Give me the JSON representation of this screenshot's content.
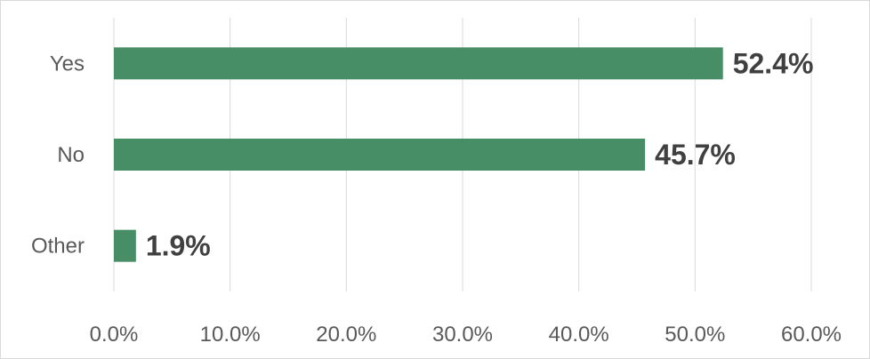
{
  "chart_data": {
    "type": "bar",
    "orientation": "horizontal",
    "categories": [
      "Yes",
      "No",
      "Other"
    ],
    "values": [
      52.4,
      45.7,
      1.9
    ],
    "data_labels": [
      "52.4%",
      "45.7%",
      "1.9%"
    ],
    "xlim": [
      0,
      60
    ],
    "x_ticks": [
      0,
      10,
      20,
      30,
      40,
      50,
      60
    ],
    "x_tick_labels": [
      "0.0%",
      "10.0%",
      "20.0%",
      "30.0%",
      "40.0%",
      "50.0%",
      "60.0%"
    ],
    "title": "",
    "xlabel": "",
    "ylabel": "",
    "grid": "vertical",
    "legend": "none",
    "bar_color": "#478d66"
  }
}
